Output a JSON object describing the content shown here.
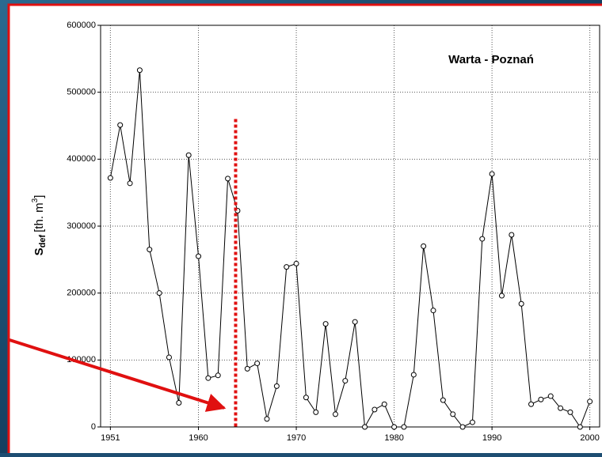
{
  "chart_data": {
    "type": "line",
    "title": "Warta - Poznań",
    "ylabel": "S",
    "ylabel_sub": "def",
    "ylabel_unit": "[th. m",
    "ylabel_sup": "3",
    "ylabel_close": "]",
    "x": [
      1951,
      1952,
      1953,
      1954,
      1955,
      1956,
      1957,
      1958,
      1959,
      1960,
      1961,
      1962,
      1963,
      1964,
      1965,
      1966,
      1967,
      1968,
      1969,
      1970,
      1971,
      1972,
      1973,
      1974,
      1975,
      1976,
      1977,
      1978,
      1979,
      1980,
      1981,
      1982,
      1983,
      1984,
      1985,
      1986,
      1987,
      1988,
      1989,
      1990,
      1991,
      1992,
      1993,
      1994,
      1995,
      1996,
      1997,
      1998,
      1999,
      2000
    ],
    "series": [
      {
        "color": "#000000",
        "values": [
          372000,
          451000,
          364000,
          533000,
          265000,
          200000,
          104000,
          36000,
          406000,
          255000,
          73000,
          77000,
          371000,
          323000,
          87000,
          95000,
          12000,
          61000,
          239000,
          244000,
          44000,
          22000,
          154000,
          19000,
          69000,
          157000,
          0,
          26000,
          34000,
          0,
          0,
          78000,
          270000,
          174000,
          40000,
          19000,
          0,
          7000,
          281000,
          378000,
          196000,
          287000,
          184000,
          34000,
          41000,
          46000,
          28000,
          22000,
          0,
          38000
        ]
      }
    ],
    "xlim": [
      1950,
      2001
    ],
    "xticks": [
      1951,
      1960,
      1970,
      1980,
      1990,
      2000
    ],
    "ylim": [
      0,
      600000
    ],
    "yticks": [
      0,
      100000,
      200000,
      300000,
      400000,
      500000,
      600000
    ],
    "grid": true,
    "threshold_line": {
      "x": 1963.8,
      "ytop": 460000,
      "color": "#e01010"
    }
  }
}
